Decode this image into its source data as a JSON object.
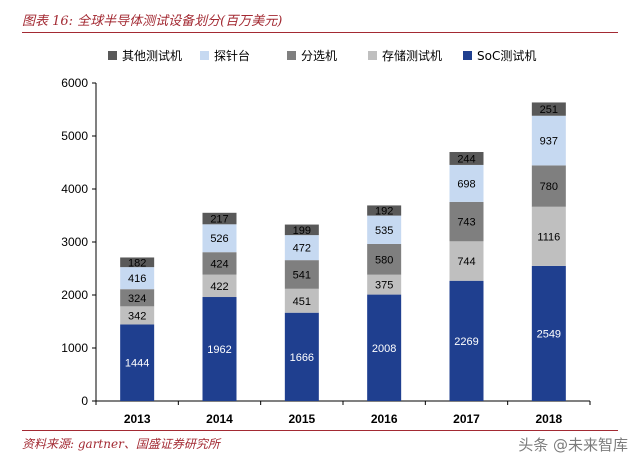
{
  "header": {
    "title": "图表 16:  全球半导体测试设备划分(百万美元)"
  },
  "footer": {
    "source": "资料来源: gartner、国盛证券研究所",
    "watermark": "头条 @未来智库"
  },
  "chart_data": {
    "type": "bar",
    "stacked": true,
    "categories": [
      "2013",
      "2014",
      "2015",
      "2016",
      "2017",
      "2018"
    ],
    "series": [
      {
        "name": "SoC测试机",
        "values": [
          1444,
          1962,
          1666,
          2008,
          2269,
          2549
        ],
        "color": "#1f3f8f",
        "label_color": "#ffffff"
      },
      {
        "name": "存储测试机",
        "values": [
          342,
          422,
          451,
          375,
          744,
          1116
        ],
        "color": "#bfbfbf",
        "label_color": "#000000"
      },
      {
        "name": "分选机",
        "values": [
          324,
          424,
          541,
          580,
          743,
          780
        ],
        "color": "#7f7f7f",
        "label_color": "#000000"
      },
      {
        "name": "探针台",
        "values": [
          416,
          526,
          472,
          535,
          698,
          937
        ],
        "color": "#c6d9f1",
        "label_color": "#000000"
      },
      {
        "name": "其他测试机",
        "values": [
          182,
          217,
          199,
          192,
          244,
          251
        ],
        "color": "#595959",
        "label_color": "#000000"
      }
    ],
    "legend_order": [
      "其他测试机",
      "探针台",
      "分选机",
      "存储测试机",
      "SoC测试机"
    ],
    "legend_position": "top",
    "ylim": [
      0,
      6000
    ],
    "yticks": [
      0,
      1000,
      2000,
      3000,
      4000,
      5000,
      6000
    ],
    "grid": false
  }
}
